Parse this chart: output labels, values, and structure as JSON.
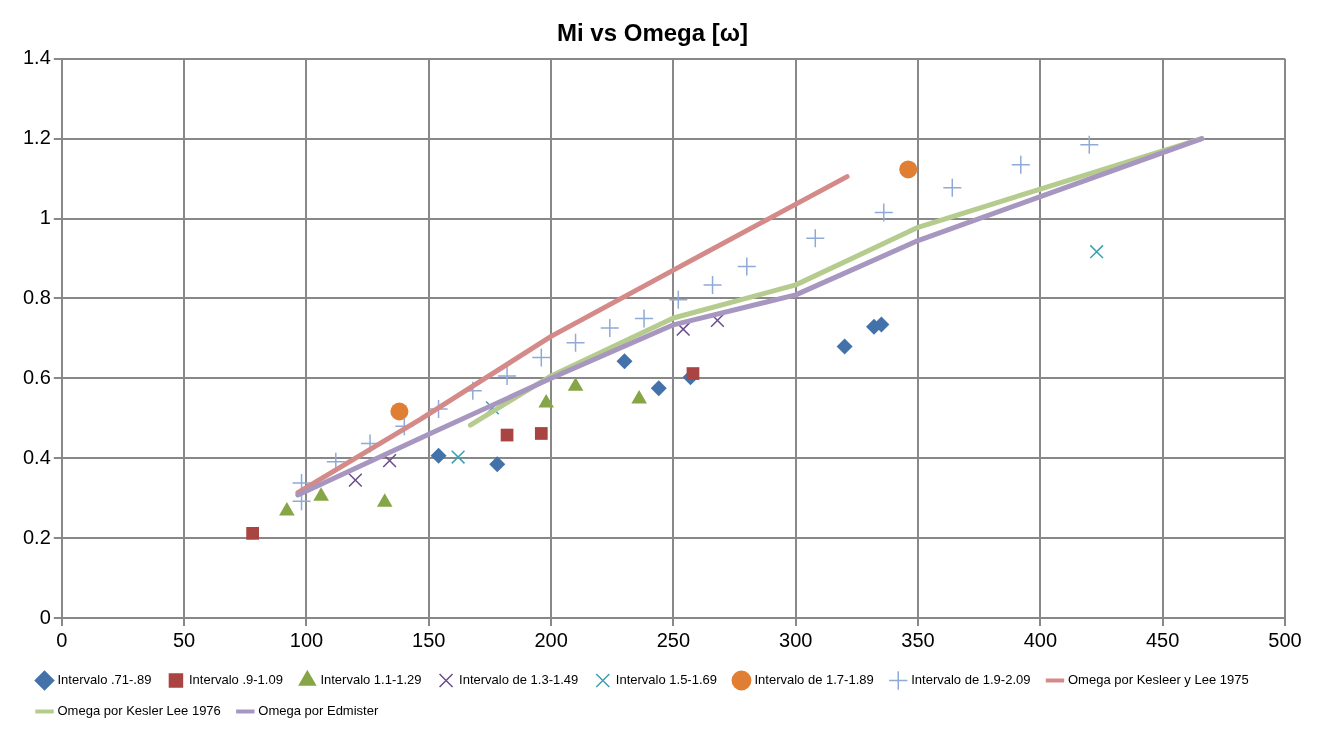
{
  "chart_data": {
    "type": "scatter",
    "title": "Mi vs Omega [ω]",
    "xlim": [
      0,
      500
    ],
    "xticks": [
      0,
      50,
      100,
      150,
      200,
      250,
      300,
      350,
      400,
      450,
      500
    ],
    "ylim": [
      0,
      1.4
    ],
    "yticks": [
      0,
      0.2,
      0.4,
      0.6,
      0.8,
      1,
      1.2,
      1.4
    ],
    "grid": true,
    "legend": "bottom",
    "series": [
      {
        "name": "Intervalo .71-.89",
        "color": "#4372aa",
        "marker": "diamond",
        "x": [
          154,
          178,
          230,
          244,
          257,
          320,
          332,
          335
        ],
        "values": [
          0.406,
          0.385,
          0.643,
          0.575,
          0.603,
          0.68,
          0.729,
          0.735
        ]
      },
      {
        "name": "Intervalo .9-1.09",
        "color": "#a94442",
        "marker": "square",
        "x": [
          78,
          182,
          196,
          258
        ],
        "values": [
          0.212,
          0.458,
          0.462,
          0.612
        ]
      },
      {
        "name": "Intervalo 1.1-1.29",
        "color": "#86a546",
        "marker": "triangle",
        "x": [
          92,
          106,
          132,
          198,
          210,
          236
        ],
        "values": [
          0.268,
          0.305,
          0.29,
          0.538,
          0.58,
          0.548
        ]
      },
      {
        "name": "Intervalo de 1.3-1.49",
        "color": "#6a4c8a",
        "marker": "cross",
        "x": [
          120,
          134,
          254,
          268
        ],
        "values": [
          0.345,
          0.394,
          0.723,
          0.745
        ]
      },
      {
        "name": "Intervalo 1.5-1.69",
        "color": "#3ba0b4",
        "marker": "cross",
        "x": [
          162,
          176,
          423
        ],
        "values": [
          0.403,
          0.526,
          0.917
        ]
      },
      {
        "name": "Intervalo de 1.7-1.89",
        "color": "#e07f33",
        "marker": "circle",
        "x": [
          138,
          346
        ],
        "values": [
          0.517,
          1.123
        ]
      },
      {
        "name": "Intervalo de 1.9-2.09",
        "color": "#8faad6",
        "marker": "plus",
        "x": [
          98,
          98,
          112,
          126,
          140,
          154,
          168,
          182,
          196,
          210,
          224,
          238,
          252,
          266,
          280,
          308,
          336,
          364,
          392,
          420
        ],
        "values": [
          0.338,
          0.292,
          0.391,
          0.437,
          0.48,
          0.523,
          0.569,
          0.606,
          0.652,
          0.689,
          0.726,
          0.75,
          0.797,
          0.834,
          0.88,
          0.951,
          1.015,
          1.077,
          1.135,
          1.185
        ]
      },
      {
        "name": "Omega por Kesleer y Lee 1975",
        "type": "line",
        "color": "#d48a88",
        "marker": "none",
        "x": [
          96.5,
          146.7,
          200,
          250,
          290,
          321
        ],
        "values": [
          0.314,
          0.498,
          0.705,
          0.871,
          1.003,
          1.105
        ]
      },
      {
        "name": "Omega por Kesler Lee 1976",
        "type": "line",
        "color": "#b5cc8e",
        "marker": "none",
        "x": [
          167,
          200,
          250,
          300,
          350,
          400,
          466
        ],
        "values": [
          0.483,
          0.606,
          0.751,
          0.834,
          0.978,
          1.074,
          1.2
        ]
      },
      {
        "name": "Omega por Edmister",
        "type": "line",
        "color": "#a797c0",
        "marker": "none",
        "x": [
          96.5,
          150,
          200,
          250,
          300,
          350,
          400,
          466
        ],
        "values": [
          0.308,
          0.46,
          0.6,
          0.734,
          0.809,
          0.945,
          1.055,
          1.2
        ]
      }
    ]
  }
}
